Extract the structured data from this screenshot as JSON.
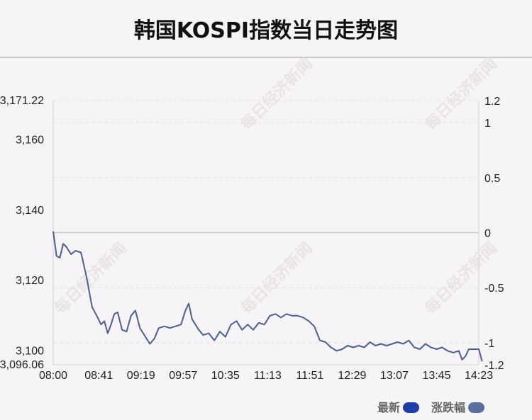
{
  "title": "韩国KOSPI指数当日走势图",
  "watermark": "每日经济新闻",
  "legend": [
    {
      "label": "最新",
      "color": "#1f3fa6"
    },
    {
      "label": "涨跌幅",
      "color": "#5a6f9e"
    }
  ],
  "chart_data": {
    "type": "line",
    "title": "韩国KOSPI指数当日走势图",
    "x_tick_labels": [
      "08:00",
      "08:41",
      "09:19",
      "09:57",
      "10:35",
      "11:13",
      "11:51",
      "12:29",
      "13:07",
      "13:45",
      "14:23"
    ],
    "y_left_range": [
      3096.06,
      3171.22
    ],
    "y_left_ticks": [
      "3,171.22",
      "3,160",
      "3,140",
      "3,120",
      "3,100",
      "3,096.06"
    ],
    "y_left_tick_values": [
      3171.22,
      3160,
      3140,
      3120,
      3100,
      3096.06
    ],
    "y_right_range": [
      -1.2,
      1.2
    ],
    "y_right_ticks": [
      "1.2",
      "1",
      "0.5",
      "0",
      "-0.5",
      "-1",
      "-1.2"
    ],
    "y_right_tick_values": [
      1.2,
      1,
      0.5,
      0,
      -0.5,
      -1,
      -1.2
    ],
    "baseline": 3133.6,
    "line_color": "#4a5f94",
    "series": [
      {
        "name": "最新",
        "x": [
          "08:00",
          "08:03",
          "08:06",
          "08:09",
          "08:12",
          "08:16",
          "08:20",
          "08:25",
          "08:30",
          "08:35",
          "08:40",
          "08:43",
          "08:46",
          "08:49",
          "08:52",
          "08:55",
          "08:58",
          "09:02",
          "09:06",
          "09:10",
          "09:14",
          "09:18",
          "09:21",
          "09:24",
          "09:27",
          "09:31",
          "09:35",
          "09:40",
          "09:45",
          "09:50",
          "09:55",
          "09:59",
          "10:02",
          "10:05",
          "10:08",
          "10:11",
          "10:15",
          "10:20",
          "10:25",
          "10:30",
          "10:35",
          "10:40",
          "10:45",
          "10:50",
          "10:55",
          "11:00",
          "11:05",
          "11:10",
          "11:15",
          "11:20",
          "11:25",
          "11:30",
          "11:35",
          "11:40",
          "11:45",
          "11:50",
          "11:55",
          "12:00",
          "12:05",
          "12:10",
          "12:15",
          "12:20",
          "12:25",
          "12:30",
          "12:35",
          "12:40",
          "12:45",
          "12:50",
          "12:55",
          "13:00",
          "13:05",
          "13:10",
          "13:15",
          "13:20",
          "13:25",
          "13:30",
          "13:35",
          "13:40",
          "13:45",
          "13:50",
          "13:55",
          "14:00",
          "14:05",
          "14:08",
          "14:11",
          "14:14",
          "14:17",
          "14:20",
          "14:23",
          "14:26"
        ],
        "y": [
          3134.0,
          3127.0,
          3126.5,
          3130.5,
          3129.5,
          3127.5,
          3128.5,
          3128.0,
          3121.0,
          3112.5,
          3109.5,
          3107.5,
          3108.5,
          3105.0,
          3107.5,
          3110.5,
          3111.0,
          3106.0,
          3105.5,
          3110.0,
          3111.5,
          3106.5,
          3105.0,
          3103.5,
          3102.0,
          3103.5,
          3106.5,
          3107.0,
          3106.5,
          3107.0,
          3107.5,
          3111.5,
          3113.5,
          3109.0,
          3107.5,
          3106.0,
          3104.5,
          3105.0,
          3103.0,
          3105.5,
          3104.0,
          3107.5,
          3108.5,
          3106.0,
          3107.5,
          3106.0,
          3108.0,
          3107.5,
          3110.0,
          3110.5,
          3109.5,
          3110.5,
          3110.0,
          3110.0,
          3109.5,
          3108.5,
          3107.0,
          3103.0,
          3102.5,
          3101.0,
          3100.0,
          3100.5,
          3101.5,
          3101.0,
          3101.5,
          3101.0,
          3102.5,
          3101.5,
          3102.0,
          3101.5,
          3102.0,
          3102.5,
          3102.0,
          3103.0,
          3101.0,
          3100.5,
          3102.0,
          3101.0,
          3100.5,
          3101.0,
          3100.0,
          3099.5,
          3100.0,
          3097.5,
          3098.5,
          3100.5,
          3100.5,
          3100.5,
          3100.5,
          3097.0
        ]
      }
    ]
  }
}
